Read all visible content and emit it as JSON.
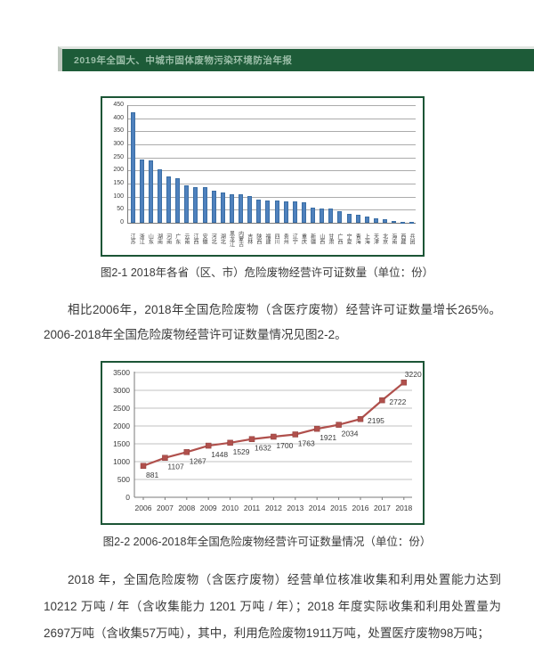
{
  "header": {
    "title": "2019年全国大、中城市固体废物污染环境防治年报"
  },
  "figures": {
    "caption1": "图2-1 2018年各省（区、市）危险废物经营许可证数量（单位：份）",
    "caption2": "图2-2 2006-2018年全国危险废物经营许可证数量情况（单位：份）"
  },
  "paragraphs": {
    "p1": "相比2006年，2018年全国危险废物（含医疗废物）经营许可证数量增长265%。2006-2018年全国危险废物经营许可证数量情况见图2-2。",
    "p2": "2018 年，全国危险废物（含医疗废物）经营单位核准收集和利用处置能力达到 10212 万吨 / 年（含收集能力 1201 万吨 / 年）；2018 年度实际收集和利用处置量为 2697万吨（含收集57万吨），其中，利用危险废物1911万吨，处置医疗废物98万吨；"
  },
  "colors": {
    "header_green": "#1d5b38",
    "frame_green": "#1c5536",
    "bar_blue": "#4f81bd",
    "line_red": "#b0504c",
    "grid_gray": "#ababab",
    "axis_gray": "#7a7a7a",
    "text_dark": "#3a3a3a"
  },
  "chart_data": [
    {
      "type": "bar",
      "title": "",
      "xlabel": "",
      "ylabel": "",
      "categories": [
        "江苏",
        "浙江",
        "山东",
        "湖南",
        "河南",
        "广东",
        "云南",
        "江西",
        "安徽",
        "河北",
        "湖北",
        "黑龙江",
        "内蒙古",
        "吉林",
        "陕西",
        "福建",
        "四川",
        "贵州",
        "辽宁",
        "重庆",
        "新疆",
        "山西",
        "甘肃",
        "广西",
        "宁夏",
        "青海",
        "上海",
        "天津",
        "北京",
        "海南",
        "西藏",
        "兵团"
      ],
      "values": [
        423,
        243,
        237,
        205,
        176,
        170,
        143,
        137,
        135,
        123,
        116,
        109,
        108,
        103,
        87,
        85,
        85,
        83,
        83,
        78,
        57,
        55,
        53,
        45,
        35,
        32,
        25,
        18,
        13,
        8,
        5,
        4
      ],
      "ylim": [
        0,
        450
      ],
      "ytick_step": 50,
      "grid": true,
      "legend": "none"
    },
    {
      "type": "line",
      "title": "",
      "xlabel": "",
      "ylabel": "",
      "categories": [
        "2006",
        "2007",
        "2008",
        "2009",
        "2010",
        "2011",
        "2012",
        "2013",
        "2014",
        "2015",
        "2016",
        "2017",
        "2018"
      ],
      "values": [
        881,
        1107,
        1267,
        1448,
        1529,
        1632,
        1700,
        1763,
        1921,
        2034,
        2195,
        2722,
        3220
      ],
      "ylim": [
        0,
        3500
      ],
      "ytick_step": 500,
      "grid": true,
      "legend": "none",
      "marker": "square",
      "data_labels": true
    }
  ]
}
